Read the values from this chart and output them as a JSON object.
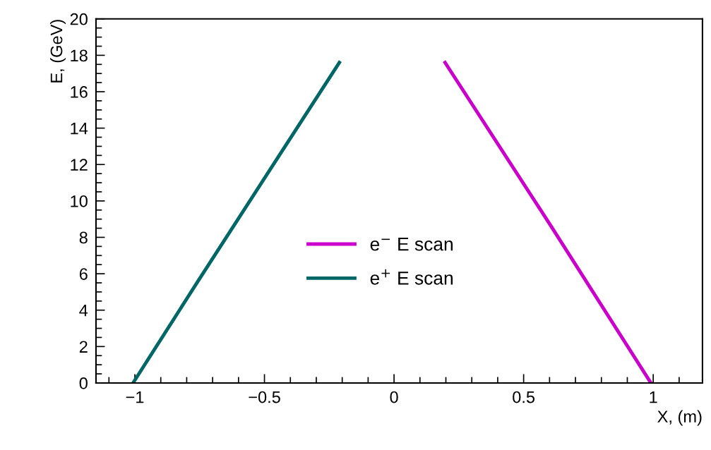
{
  "chart_data": {
    "type": "line",
    "xlabel": "X, (m)",
    "ylabel": "E, (GeV)",
    "series": [
      {
        "name": "e$^{−}$ E scan",
        "color": "#cc00cc",
        "x": [
          0.197,
          0.611,
          0.991
        ],
        "values": [
          17.6,
          8.5,
          0
        ]
      },
      {
        "name": "e$^{+}$ E scan",
        "color": "#006666",
        "x": [
          -1.007,
          -0.756,
          -0.502,
          -0.211
        ],
        "values": [
          0,
          5.6,
          11.2,
          17.6
        ]
      }
    ],
    "xlim": [
      -1.15,
      1.19
    ],
    "xticks": [
      {
        "value": -1,
        "label": "−1"
      },
      {
        "value": -0.5,
        "label": "−0.5"
      },
      0,
      0.5,
      1
    ],
    "ylim": [
      0,
      20
    ],
    "yticks": [
      0,
      2,
      4,
      6,
      8,
      10,
      12,
      14,
      16,
      18,
      20
    ],
    "grid": false,
    "legend": "center",
    "marker": "none",
    "line_style": "solid"
  }
}
